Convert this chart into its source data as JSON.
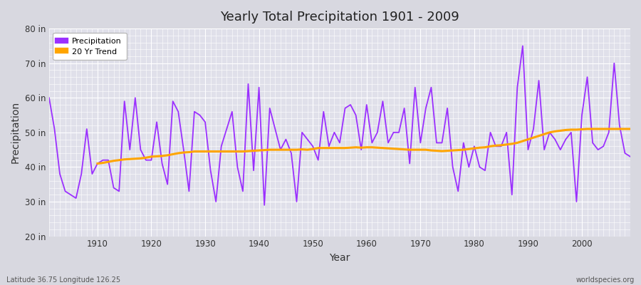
{
  "title": "Yearly Total Precipitation 1901 - 2009",
  "xlabel": "Year",
  "ylabel": "Precipitation",
  "lat_lon_label": "Latitude 36.75 Longitude 126.25",
  "watermark": "worldspecies.org",
  "ylim": [
    20,
    80
  ],
  "yticks": [
    20,
    30,
    40,
    50,
    60,
    70,
    80
  ],
  "ytick_labels": [
    "20 in",
    "30 in",
    "40 in",
    "50 in",
    "60 in",
    "70 in",
    "80 in"
  ],
  "xlim": [
    1901,
    2009
  ],
  "xticks": [
    1910,
    1920,
    1930,
    1940,
    1950,
    1960,
    1970,
    1980,
    1990,
    2000
  ],
  "precip_color": "#9B30FF",
  "trend_color": "#FFA500",
  "fig_bg_color": "#D8D8E0",
  "plot_bg_color": "#E0E0EA",
  "grid_color": "#FFFFFF",
  "years": [
    1901,
    1902,
    1903,
    1904,
    1905,
    1906,
    1907,
    1908,
    1909,
    1910,
    1911,
    1912,
    1913,
    1914,
    1915,
    1916,
    1917,
    1918,
    1919,
    1920,
    1921,
    1922,
    1923,
    1924,
    1925,
    1926,
    1927,
    1928,
    1929,
    1930,
    1931,
    1932,
    1933,
    1934,
    1935,
    1936,
    1937,
    1938,
    1939,
    1940,
    1941,
    1942,
    1943,
    1944,
    1945,
    1946,
    1947,
    1948,
    1949,
    1950,
    1951,
    1952,
    1953,
    1954,
    1955,
    1956,
    1957,
    1958,
    1959,
    1960,
    1961,
    1962,
    1963,
    1964,
    1965,
    1966,
    1967,
    1968,
    1969,
    1970,
    1971,
    1972,
    1973,
    1974,
    1975,
    1976,
    1977,
    1978,
    1979,
    1980,
    1981,
    1982,
    1983,
    1984,
    1985,
    1986,
    1987,
    1988,
    1989,
    1990,
    1991,
    1992,
    1993,
    1994,
    1995,
    1996,
    1997,
    1998,
    1999,
    2000,
    2001,
    2002,
    2003,
    2004,
    2005,
    2006,
    2007,
    2008,
    2009
  ],
  "precip": [
    60,
    51,
    38,
    33,
    32,
    31,
    38,
    51,
    38,
    41,
    42,
    42,
    34,
    33,
    59,
    45,
    60,
    45,
    42,
    42,
    53,
    41,
    35,
    59,
    56,
    45,
    33,
    56,
    55,
    53,
    39,
    30,
    46,
    51,
    56,
    40,
    33,
    64,
    39,
    63,
    29,
    57,
    51,
    45,
    48,
    44,
    30,
    50,
    48,
    46,
    42,
    56,
    46,
    50,
    47,
    57,
    58,
    55,
    45,
    58,
    47,
    50,
    59,
    47,
    50,
    50,
    57,
    41,
    63,
    47,
    57,
    63,
    47,
    47,
    57,
    40,
    33,
    47,
    40,
    46,
    40,
    39,
    50,
    46,
    46,
    50,
    32,
    63,
    75,
    45,
    51,
    65,
    45,
    50,
    48,
    45,
    48,
    50,
    30,
    55,
    66,
    47,
    45,
    46,
    50,
    70,
    52,
    44,
    43
  ],
  "trend": [
    null,
    null,
    null,
    null,
    null,
    null,
    null,
    null,
    null,
    41,
    41.2,
    41.5,
    41.8,
    42.0,
    42.2,
    42.3,
    42.4,
    42.5,
    42.7,
    43.0,
    43.1,
    43.2,
    43.4,
    43.7,
    44.0,
    44.2,
    44.3,
    44.5,
    44.5,
    44.5,
    44.5,
    44.5,
    44.5,
    44.5,
    44.5,
    44.5,
    44.5,
    44.6,
    44.7,
    44.8,
    44.9,
    45.0,
    45.0,
    45.0,
    45.0,
    45.0,
    45.0,
    45.1,
    45.0,
    45.2,
    45.5,
    45.5,
    45.5,
    45.5,
    45.5,
    45.5,
    45.6,
    45.7,
    45.6,
    45.7,
    45.7,
    45.6,
    45.5,
    45.4,
    45.3,
    45.2,
    45.1,
    45.0,
    45.0,
    45.0,
    45.0,
    44.8,
    44.7,
    44.6,
    44.7,
    44.8,
    44.9,
    45.0,
    45.2,
    45.4,
    45.6,
    45.7,
    46.0,
    46.2,
    46.3,
    46.5,
    46.7,
    47.0,
    47.5,
    48.0,
    48.5,
    49.0,
    49.5,
    50.0,
    50.3,
    50.5,
    50.7,
    50.8,
    50.8,
    50.9,
    51.0,
    51.0,
    51.0,
    51.0,
    51.0,
    51.0,
    51.0,
    51.0,
    51.0
  ]
}
